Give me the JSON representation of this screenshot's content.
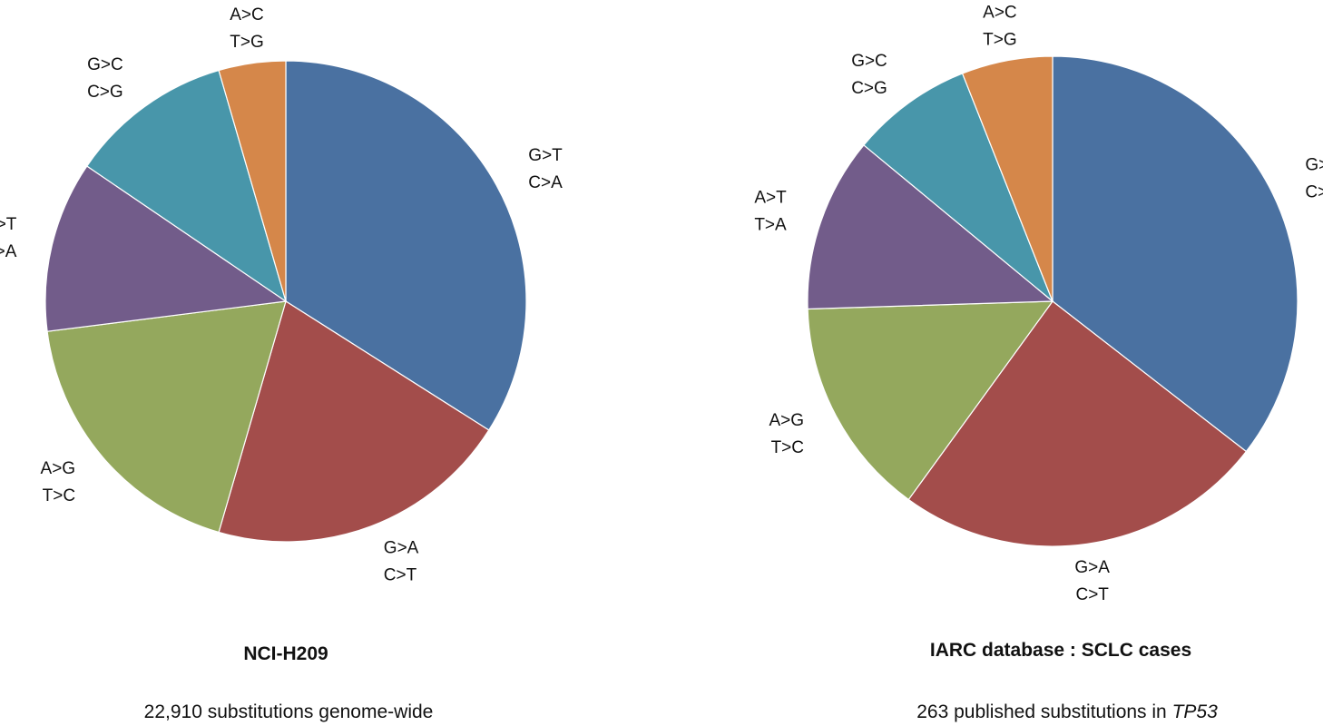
{
  "chart_data": [
    {
      "type": "pie",
      "title": "NCI-H209",
      "subtitle": "22,910 substitutions genome-wide",
      "slices": [
        {
          "label": [
            "G>T",
            "C>A"
          ],
          "value": 34.0,
          "color": "#4A71A1"
        },
        {
          "label": [
            "G>A",
            "C>T"
          ],
          "value": 20.5,
          "color": "#A34D4B"
        },
        {
          "label": [
            "A>G",
            "T>C"
          ],
          "value": 18.5,
          "color": "#94A85D"
        },
        {
          "label": [
            "A>T",
            "T>A"
          ],
          "value": 11.5,
          "color": "#725C8A"
        },
        {
          "label": [
            "G>C",
            "C>G"
          ],
          "value": 11.0,
          "color": "#4896AA"
        },
        {
          "label": [
            "A>C",
            "T>G"
          ],
          "value": 4.5,
          "color": "#D5874A"
        }
      ]
    },
    {
      "type": "pie",
      "title": "IARC database : SCLC cases",
      "subtitle_parts": [
        "263 published substitutions in ",
        "TP53"
      ],
      "slices": [
        {
          "label": [
            "G>T",
            "C>A"
          ],
          "value": 35.5,
          "color": "#4A71A1"
        },
        {
          "label": [
            "G>A",
            "C>T"
          ],
          "value": 24.5,
          "color": "#A34D4B"
        },
        {
          "label": [
            "A>G",
            "T>C"
          ],
          "value": 14.5,
          "color": "#94A85D"
        },
        {
          "label": [
            "A>T",
            "T>A"
          ],
          "value": 11.5,
          "color": "#725C8A"
        },
        {
          "label": [
            "G>C",
            "C>G"
          ],
          "value": 8.0,
          "color": "#4896AA"
        },
        {
          "label": [
            "A>C",
            "T>G"
          ],
          "value": 6.0,
          "color": "#D5874A"
        }
      ]
    }
  ]
}
